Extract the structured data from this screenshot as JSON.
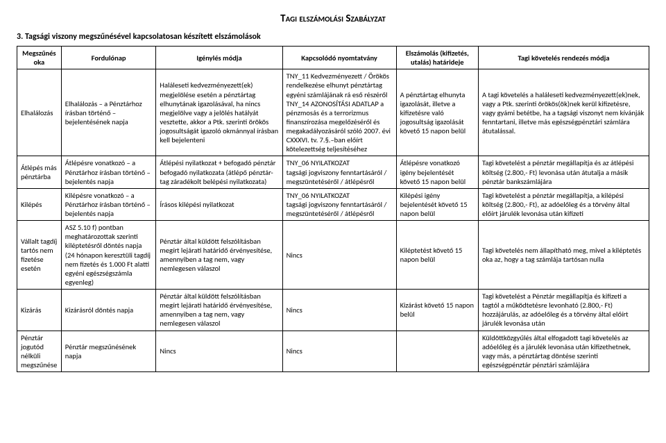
{
  "title": "Tagi elszámolási Szabályzat",
  "section": "3. Tagsági viszony megszűnésével kapcsolatosan készített elszámolások",
  "headers": {
    "c1": "Megszűnés oka",
    "c2": "Fordulónap",
    "c3": "Igénylés módja",
    "c4": "Kapcsolódó nyomtatvány",
    "c5": "Elszámolás (kifizetés, utalás) határideje",
    "c6": "Tagi követelés rendezés módja"
  },
  "rows": [
    {
      "c1": "Elhalálozás",
      "c2": "Elhalálozás – a Pénztárhoz írásban történő – bejelentésének napja",
      "c3": "Haláleseti kedvezményezett(ek) megjelölése esetén a pénztártag elhunytának igazolásával, ha nincs megjelölve vagy a jelölés hatályát vesztette, akkor a Ptk. szerinti örökös jogosultságát igazoló okmánnyal írásban kell bejelenteni",
      "c4": "TNY_11 Kedvezményezett / Örökös rendelkezése elhunyt pénztártag egyéni számlájának rá eső részéről\nTNY_14 AZONOSÍTÁSI ADATLAP a pénzmosás és a terrorizmus finanszírozása megelőzéséről és megakadályozásáról szóló 2007. évi CXXXVI. tv. 7.§.–ban előírt kötelezettség teljesítéséhez",
      "c5": "A pénztártag elhunyta igazolását, illetve a kifizetésre való jogosultság igazolását követő 15 napon belül",
      "c6": "A tagi követelés a haláleseti kedvezményezett(ek)nek, vagy a Ptk. szerinti örökös(ök)nek kerül kifizetésre, vagy gyámi betétbe, ha a tagsági viszonyt nem kívánják fenntartani, illetve más egészségpénztári számlára átutalással."
    },
    {
      "c1": "Átlépés más pénztárba",
      "c2": "Átlépésre vonatkozó – a Pénztárhoz írásban történő – bejelentés napja",
      "c3": "Átlépési nyilatkozat + befogadó pénztár befogadó nyilatkozata (átlépő pénztár-tag záradékolt belépési nyilatkozata)",
      "c4": "TNY_06 NYILATKOZAT\ntagsági jogviszony fenntartásáról / megszüntetéséről / átlépésről",
      "c5": "Átlépésre vonatkozó igény bejelentését követő 15 napon belül",
      "c6": "Tagi követelést a pénztár megállapítja és az átlépési költség (2.800,- Ft) levonása után átutalja a másik pénztár bankszámlájára"
    },
    {
      "c1": "Kilépés",
      "c2": "Kilépésre vonatkozó – a Pénztárhoz írásban történő – bejelentés napja",
      "c3": "Írásos kilépési nyilatkozat",
      "c4": "TNY_06 NYILATKOZAT\ntagsági jogviszony fenntartásáról / megszüntetéséről / átlépésről",
      "c5": "Kilépési igény bejelentését követő 15 napon belül",
      "c6": "Tagi követelést a pénztár megállapítja, a kilépési költség (2.800,- Ft), az adóelőleg és a törvény által előírt járulék levonása után kifizeti"
    },
    {
      "c1": "Vállalt tagdíj tartós nem fizetése esetén",
      "c2": "ASZ 5.10 f) pontban meghatározottak szerinti kiléptetésről döntés napja (24 hónapon keresztüli tagdíj nem fizetés és 1.000 Ft alatti egyéni egészségszámla egyenleg)",
      "c3": "Pénztár által küldött felszólításban megírt lejárati határidő érvényesítése, amennyiben a tag nem, vagy nemlegesen válaszol",
      "c4": "Nincs",
      "c5": "Kiléptetést követő 15 napon belül",
      "c6": "Tagi követelés nem állapítható meg, mivel a kiléptetés oka az, hogy a tag számlája tartósan nulla"
    },
    {
      "c1": "Kizárás",
      "c2": "Kizárásról döntés napja",
      "c3": "Pénztár által küldött felszólításban megírt lejárati határidő érvényesítése, amennyiben a tag nem, vagy nemlegesen válaszol",
      "c4": "Nincs",
      "c5": "Kizárást követő 15 napon belül",
      "c6": "Tagi követelést a Pénztár megállapítja és kifizeti a tagtól a működtetésre levonható (2.800,- Ft) hozzájárulás, az adóelőleg és a törvény által előírt járulék levonása után"
    },
    {
      "c1": "Pénztár jogutód nélküli megszűnése",
      "c2": "Pénztár megszűnésének napja",
      "c3": "Nincs",
      "c4": "Nincs",
      "c5": "",
      "c6": "Küldöttközgyűlés által elfogadott tagi követelés az adóelőleg és a járulék levonása után kifizethetnek, vagy más, a pénztártag döntése szerinti egészségpénztár pénztári számlájára"
    }
  ]
}
